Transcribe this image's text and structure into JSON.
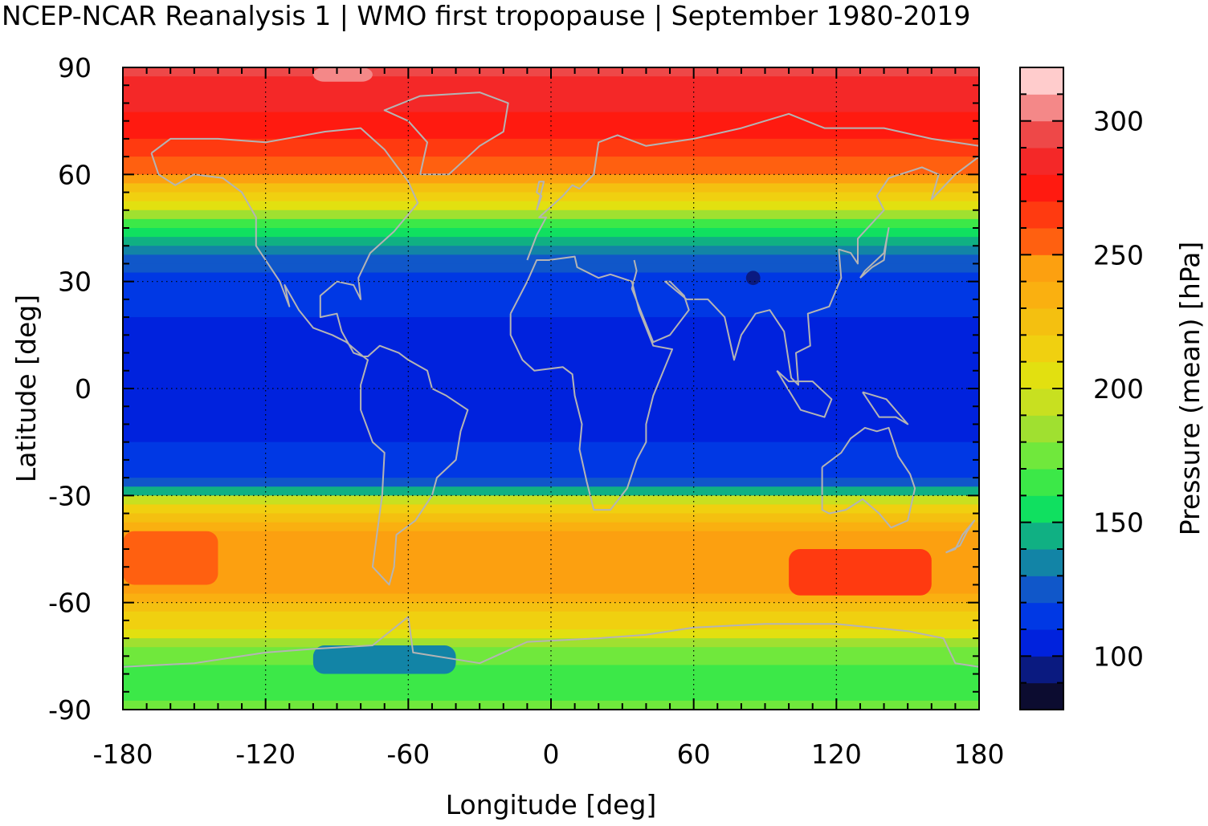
{
  "chart_data": {
    "type": "heatmap",
    "title": "NCEP-NCAR Reanalysis 1 | WMO first tropopause | September 1980-2019",
    "xlabel": "Longitude [deg]",
    "ylabel": "Latitude [deg]",
    "colorbar_label": "Pressure (mean) [hPa]",
    "xlim": [
      -180,
      180
    ],
    "ylim": [
      -90,
      90
    ],
    "xticks": [
      "-180",
      "-120",
      "-60",
      "0",
      "60",
      "120",
      "180"
    ],
    "yticks": [
      "90",
      "60",
      "30",
      "0",
      "-30",
      "-60",
      "-90"
    ],
    "x_tick_values": [
      -180,
      -120,
      -60,
      0,
      60,
      120,
      180
    ],
    "y_tick_values": [
      90,
      60,
      30,
      0,
      -30,
      -60,
      -90
    ],
    "colorbar_ticks": [
      "300",
      "250",
      "200",
      "150",
      "100"
    ],
    "colorbar_tick_values": [
      300,
      250,
      200,
      150,
      100
    ],
    "colorbar_range": [
      80,
      320
    ],
    "colorbar_levels": [
      {
        "from": 80,
        "to": 90,
        "color": "#0c0c30"
      },
      {
        "from": 90,
        "to": 100,
        "color": "#0a1a80"
      },
      {
        "from": 100,
        "to": 110,
        "color": "#0022dd"
      },
      {
        "from": 110,
        "to": 120,
        "color": "#0038e4"
      },
      {
        "from": 120,
        "to": 130,
        "color": "#1057c9"
      },
      {
        "from": 130,
        "to": 140,
        "color": "#1284a6"
      },
      {
        "from": 140,
        "to": 150,
        "color": "#10b083"
      },
      {
        "from": 150,
        "to": 160,
        "color": "#10e060"
      },
      {
        "from": 160,
        "to": 170,
        "color": "#3ce848"
      },
      {
        "from": 170,
        "to": 180,
        "color": "#70e83c"
      },
      {
        "from": 180,
        "to": 190,
        "color": "#a0e030"
      },
      {
        "from": 190,
        "to": 200,
        "color": "#c8e020"
      },
      {
        "from": 200,
        "to": 210,
        "color": "#e2e010"
      },
      {
        "from": 210,
        "to": 220,
        "color": "#f0d010"
      },
      {
        "from": 220,
        "to": 230,
        "color": "#f4c010"
      },
      {
        "from": 230,
        "to": 240,
        "color": "#fab010"
      },
      {
        "from": 240,
        "to": 250,
        "color": "#fca010"
      },
      {
        "from": 250,
        "to": 260,
        "color": "#ff6010"
      },
      {
        "from": 260,
        "to": 270,
        "color": "#ff3a10"
      },
      {
        "from": 270,
        "to": 280,
        "color": "#ff1a10"
      },
      {
        "from": 280,
        "to": 290,
        "color": "#f42828"
      },
      {
        "from": 290,
        "to": 300,
        "color": "#ee4848"
      },
      {
        "from": 300,
        "to": 310,
        "color": "#f48888"
      },
      {
        "from": 310,
        "to": 320,
        "color": "#ffcccc"
      }
    ],
    "zonal_mean_pressure_hpa": [
      {
        "lat": 90,
        "value": 292
      },
      {
        "lat": 82,
        "value": 285
      },
      {
        "lat": 75,
        "value": 276
      },
      {
        "lat": 65,
        "value": 262
      },
      {
        "lat": 58,
        "value": 240
      },
      {
        "lat": 52,
        "value": 205
      },
      {
        "lat": 46,
        "value": 165
      },
      {
        "lat": 40,
        "value": 138
      },
      {
        "lat": 35,
        "value": 122
      },
      {
        "lat": 25,
        "value": 112
      },
      {
        "lat": 10,
        "value": 104
      },
      {
        "lat": 0,
        "value": 104
      },
      {
        "lat": -10,
        "value": 106
      },
      {
        "lat": -18,
        "value": 112
      },
      {
        "lat": -24,
        "value": 118
      },
      {
        "lat": -28,
        "value": 135
      },
      {
        "lat": -32,
        "value": 205
      },
      {
        "lat": -38,
        "value": 234
      },
      {
        "lat": -45,
        "value": 248
      },
      {
        "lat": -52,
        "value": 250
      },
      {
        "lat": -58,
        "value": 242
      },
      {
        "lat": -63,
        "value": 222
      },
      {
        "lat": -68,
        "value": 205
      },
      {
        "lat": -73,
        "value": 180
      },
      {
        "lat": -80,
        "value": 162
      },
      {
        "lat": -86,
        "value": 168
      },
      {
        "lat": -90,
        "value": 172
      }
    ],
    "regional_features": [
      {
        "lon_range": [
          100,
          160
        ],
        "lat_range": [
          -58,
          -45
        ],
        "value": 268
      },
      {
        "lon_range": [
          -180,
          -140
        ],
        "lat_range": [
          -55,
          -40
        ],
        "value": 255
      },
      {
        "lon_range": [
          -100,
          -75
        ],
        "lat_range": [
          90,
          86
        ],
        "value": 305
      },
      {
        "lon_range": [
          -100,
          -40
        ],
        "lat_range": [
          -80,
          -72
        ],
        "value": 135
      },
      {
        "lon_range": [
          82,
          88
        ],
        "lat_range": [
          29,
          33
        ],
        "value": 95
      }
    ],
    "grid": true,
    "coastlines": true
  }
}
